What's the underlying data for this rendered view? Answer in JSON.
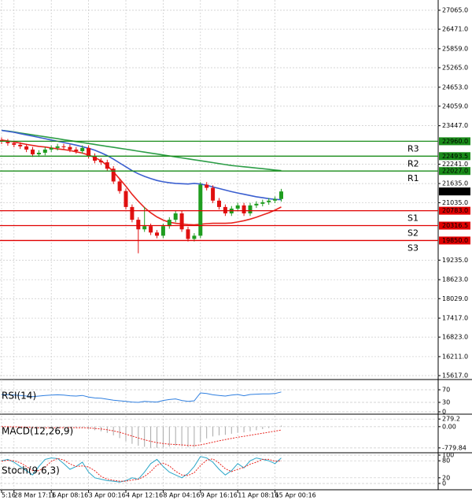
{
  "chart_data": [
    {
      "type": "candlestick",
      "categories": [
        "5:16",
        null,
        "28 Mar 17:16",
        null,
        null,
        null,
        null,
        null,
        "1 Apr 08:16",
        null,
        null,
        null,
        null,
        null,
        "3 Apr 00:16",
        null,
        null,
        null,
        null,
        null,
        "4 Apr 12:16",
        null,
        null,
        null,
        null,
        null,
        "8 Apr 04:16",
        null,
        null,
        null,
        null,
        null,
        "9 Apr 16:16",
        null,
        null,
        null,
        null,
        null,
        "11 Apr 08:16",
        null,
        null,
        null,
        null,
        null,
        "15 Apr 00:16",
        null
      ],
      "open": [
        23000,
        22950,
        22900,
        22850,
        22800,
        22700,
        22550,
        22600,
        22700,
        22750,
        22800,
        22780,
        22700,
        22650,
        22750,
        22500,
        22350,
        22300,
        22100,
        21700,
        21400,
        20900,
        20500,
        20200,
        20300,
        20100,
        20000,
        20300,
        20500,
        20700,
        20200,
        19900,
        20000,
        21600,
        21500,
        21100,
        20900,
        20700,
        20850,
        20950,
        20700,
        20950,
        21000,
        21050,
        21100,
        21150
      ],
      "high": [
        23080,
        23030,
        22980,
        22930,
        22880,
        22780,
        22680,
        22780,
        22830,
        22880,
        22880,
        22860,
        22780,
        22830,
        22830,
        22580,
        22430,
        22380,
        22180,
        21780,
        21480,
        20980,
        20580,
        20900,
        20380,
        20180,
        20380,
        20580,
        20780,
        20780,
        20280,
        20080,
        21680,
        21680,
        21580,
        21180,
        20980,
        20930,
        21030,
        21030,
        21030,
        21080,
        21130,
        21180,
        21230,
        21467
      ],
      "low": [
        22870,
        22820,
        22770,
        22720,
        22620,
        22470,
        22470,
        22520,
        22620,
        22670,
        22700,
        22620,
        22570,
        22570,
        22420,
        22270,
        22220,
        22020,
        21620,
        21320,
        20820,
        20420,
        19450,
        20120,
        20020,
        19920,
        19920,
        20220,
        20420,
        20120,
        19820,
        19820,
        19920,
        21420,
        21020,
        20820,
        20620,
        20620,
        20770,
        20620,
        20620,
        20870,
        20920,
        20970,
        21020,
        21070
      ],
      "close": [
        22950,
        22900,
        22850,
        22800,
        22700,
        22550,
        22600,
        22700,
        22750,
        22800,
        22780,
        22700,
        22650,
        22750,
        22500,
        22350,
        22300,
        22100,
        21700,
        21400,
        20900,
        20500,
        20200,
        20300,
        20100,
        20000,
        20300,
        20500,
        20700,
        20200,
        19900,
        20000,
        21600,
        21500,
        21100,
        20900,
        20700,
        20850,
        20950,
        20700,
        20950,
        21000,
        21050,
        21100,
        21150,
        21387
      ],
      "up_color": "#1f9d1f",
      "down_color": "#e01010",
      "overlays": [
        {
          "color": "#2e9e48",
          "values": [
            23300,
            23280,
            23250,
            23220,
            23190,
            23160,
            23130,
            23100,
            23070,
            23040,
            23010,
            22980,
            22950,
            22920,
            22890,
            22860,
            22830,
            22800,
            22770,
            22740,
            22710,
            22680,
            22650,
            22620,
            22590,
            22560,
            22530,
            22500,
            22470,
            22440,
            22410,
            22380,
            22350,
            22320,
            22290,
            22260,
            22230,
            22200,
            22180,
            22160,
            22140,
            22120,
            22100,
            22080,
            22060,
            22040
          ]
        },
        {
          "color": "#3b5fd0",
          "values": [
            23300,
            23270,
            23240,
            23200,
            23160,
            23120,
            23080,
            23040,
            23000,
            22960,
            22920,
            22880,
            22840,
            22790,
            22740,
            22680,
            22600,
            22510,
            22400,
            22280,
            22160,
            22040,
            21940,
            21860,
            21790,
            21730,
            21690,
            21660,
            21640,
            21630,
            21620,
            21640,
            21620,
            21580,
            21530,
            21480,
            21430,
            21380,
            21340,
            21300,
            21260,
            21220,
            21190,
            21160,
            21140,
            21130
          ]
        },
        {
          "color": "#e8251f",
          "values": [
            23000,
            22970,
            22940,
            22900,
            22860,
            22830,
            22800,
            22780,
            22750,
            22720,
            22700,
            22670,
            22630,
            22590,
            22530,
            22450,
            22350,
            22200,
            22000,
            21780,
            21550,
            21300,
            21080,
            20880,
            20720,
            20590,
            20490,
            20420,
            20390,
            20370,
            20350,
            20340,
            20360,
            20380,
            20390,
            20390,
            20390,
            20400,
            20430,
            20470,
            20520,
            20580,
            20650,
            20720,
            20800,
            20900
          ]
        }
      ],
      "levels": [
        {
          "label": "R3",
          "value": 22960,
          "value_label": "22960.0",
          "color": "#1a8c1a"
        },
        {
          "label": "R2",
          "value": 22493.5,
          "value_label": "22493.5",
          "color": "#1a8c1a"
        },
        {
          "label": "R1",
          "value": 22027,
          "value_label": "22027.0",
          "color": "#1a8c1a"
        },
        {
          "label": "S1",
          "value": 20783,
          "value_label": "20783.0",
          "color": "#e00000"
        },
        {
          "label": "S2",
          "value": 20316.5,
          "value_label": "20316.5",
          "color": "#e00000"
        },
        {
          "label": "S3",
          "value": 19850,
          "value_label": "19850.0",
          "color": "#e00000"
        }
      ],
      "last_price": {
        "value": 21387,
        "label": "21387.0"
      },
      "ylim": [
        15494,
        27386
      ],
      "yticks": [
        {
          "value": 27065,
          "label": "27065.0"
        },
        {
          "value": 26471,
          "label": "26471.0"
        },
        {
          "value": 25859,
          "label": "25859.0"
        },
        {
          "value": 25265,
          "label": "25265.0"
        },
        {
          "value": 24653,
          "label": "24653.0"
        },
        {
          "value": 24059,
          "label": "24059.0"
        },
        {
          "value": 23447,
          "label": "23447.0"
        },
        {
          "value": 22241,
          "label": "22241.0"
        },
        {
          "value": 21635,
          "label": "21635.0"
        },
        {
          "value": 21035,
          "label": "21035.0"
        },
        {
          "value": 19235,
          "label": "19235.0"
        },
        {
          "value": 18623,
          "label": "18623.0"
        },
        {
          "value": 18029,
          "label": "18029.0"
        },
        {
          "value": 17417,
          "label": "17417.0"
        },
        {
          "value": 16823,
          "label": "16823.0"
        },
        {
          "value": 16211,
          "label": "16211.0"
        },
        {
          "value": 15617,
          "label": "15617.0"
        }
      ],
      "grid": true
    },
    {
      "type": "line",
      "title": "RSI(14)",
      "ylim": [
        0,
        100
      ],
      "yticks": [
        70,
        30,
        0
      ],
      "series": [
        {
          "color": "#2f7fe0",
          "values": [
            55,
            54,
            53,
            52,
            50,
            48,
            50,
            52,
            53,
            54,
            53,
            51,
            50,
            52,
            47,
            44,
            43,
            40,
            37,
            35,
            33,
            31,
            30,
            33,
            32,
            31,
            36,
            39,
            41,
            36,
            33,
            35,
            60,
            58,
            54,
            52,
            50,
            53,
            55,
            51,
            55,
            56,
            57,
            57,
            58,
            63
          ]
        }
      ]
    },
    {
      "type": "macd",
      "title": "MACD(12,26,9)",
      "ylim": [
        -900,
        400
      ],
      "yticks": [
        279.2,
        {
          "value": 0,
          "label": "0.00"
        },
        -779.84
      ],
      "histogram": {
        "color": "#a8a8a8",
        "values": [
          0,
          -10,
          -20,
          -30,
          -50,
          -80,
          -70,
          -50,
          -40,
          -30,
          -30,
          -40,
          -50,
          -40,
          -80,
          -130,
          -170,
          -230,
          -320,
          -420,
          -530,
          -630,
          -700,
          -740,
          -770,
          -780,
          -760,
          -730,
          -700,
          -720,
          -760,
          -740,
          -560,
          -430,
          -360,
          -320,
          -300,
          -260,
          -220,
          -210,
          -170,
          -130,
          -90,
          -50,
          -10,
          40
        ]
      },
      "signal": {
        "color": "#e8251f",
        "values": [
          0,
          -2,
          -6,
          -10,
          -18,
          -30,
          -38,
          -40,
          -40,
          -38,
          -36,
          -37,
          -40,
          -40,
          -48,
          -64,
          -85,
          -114,
          -155,
          -208,
          -272,
          -344,
          -415,
          -480,
          -538,
          -586,
          -621,
          -643,
          -655,
          -668,
          -686,
          -697,
          -670,
          -622,
          -570,
          -520,
          -476,
          -433,
          -390,
          -354,
          -317,
          -279,
          -241,
          -203,
          -164,
          -123
        ]
      }
    },
    {
      "type": "line",
      "title": "Stoch(9,6,3)",
      "ylim": [
        0,
        100
      ],
      "yticks": [
        100,
        80,
        20,
        0
      ],
      "series": [
        {
          "color": "#2aa6c8",
          "values": [
            80,
            85,
            75,
            60,
            45,
            30,
            60,
            85,
            90,
            88,
            70,
            50,
            60,
            75,
            40,
            20,
            15,
            10,
            8,
            5,
            10,
            20,
            15,
            40,
            70,
            85,
            60,
            40,
            30,
            20,
            35,
            60,
            95,
            90,
            75,
            50,
            30,
            45,
            70,
            55,
            80,
            90,
            85,
            80,
            70,
            90
          ]
        },
        {
          "color": "#e8251f",
          "dashed": true,
          "values": [
            78,
            82,
            80,
            73,
            60,
            45,
            45,
            58,
            78,
            88,
            83,
            69,
            60,
            62,
            58,
            45,
            25,
            15,
            11,
            8,
            8,
            12,
            15,
            25,
            42,
            65,
            72,
            62,
            43,
            30,
            28,
            38,
            63,
            82,
            87,
            72,
            52,
            42,
            50,
            57,
            68,
            75,
            85,
            85,
            78,
            80
          ]
        }
      ]
    }
  ]
}
